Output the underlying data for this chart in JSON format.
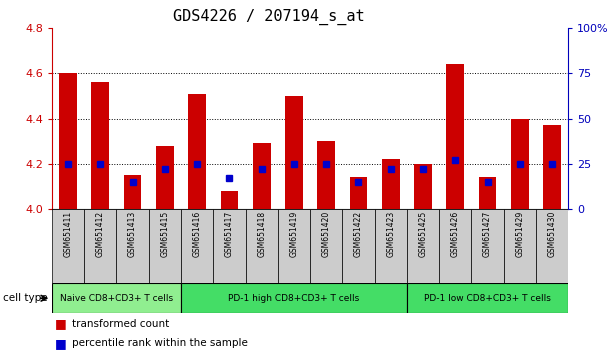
{
  "title": "GDS4226 / 207194_s_at",
  "samples": [
    "GSM651411",
    "GSM651412",
    "GSM651413",
    "GSM651415",
    "GSM651416",
    "GSM651417",
    "GSM651418",
    "GSM651419",
    "GSM651420",
    "GSM651422",
    "GSM651423",
    "GSM651425",
    "GSM651426",
    "GSM651427",
    "GSM651429",
    "GSM651430"
  ],
  "transformed_count": [
    4.6,
    4.56,
    4.15,
    4.28,
    4.51,
    4.08,
    4.29,
    4.5,
    4.3,
    4.14,
    4.22,
    4.2,
    4.64,
    4.14,
    4.4,
    4.37
  ],
  "percentile_rank": [
    25,
    25,
    15,
    22,
    25,
    17,
    22,
    25,
    25,
    15,
    22,
    22,
    27,
    15,
    25,
    25
  ],
  "ylim_left": [
    4.0,
    4.8
  ],
  "ylim_right": [
    0,
    100
  ],
  "yticks_left": [
    4.0,
    4.2,
    4.4,
    4.6,
    4.8
  ],
  "yticks_right": [
    0,
    25,
    50,
    75,
    100
  ],
  "groups": [
    {
      "label": "Naive CD8+CD3+ T cells",
      "start": 0,
      "end": 3,
      "color": "#90EE90"
    },
    {
      "label": "PD-1 high CD8+CD3+ T cells",
      "start": 4,
      "end": 10,
      "color": "#44DD66"
    },
    {
      "label": "PD-1 low CD8+CD3+ T cells",
      "start": 11,
      "end": 15,
      "color": "#44DD66"
    }
  ],
  "cell_type_label": "cell type",
  "legend_items": [
    {
      "label": "transformed count",
      "color": "#CC0000"
    },
    {
      "label": "percentile rank within the sample",
      "color": "#0000CC"
    }
  ],
  "bar_color": "#CC0000",
  "percentile_color": "#0000CC",
  "bar_width": 0.55,
  "bg_color": "#ffffff",
  "left_tick_color": "#CC0000",
  "right_tick_color": "#0000BB",
  "sample_box_color": "#CCCCCC",
  "title_fontsize": 11
}
